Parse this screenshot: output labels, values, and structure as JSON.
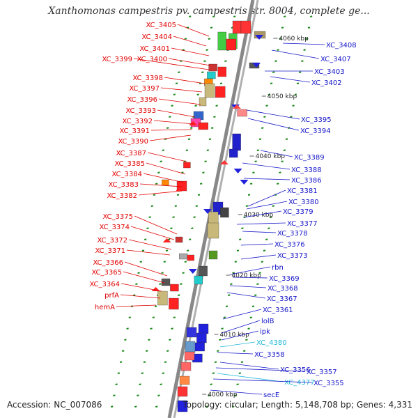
{
  "map": {
    "title": "Xanthomonas campestris pv. campestris str. 8004, complete ge...",
    "accession": "Accession: NC_007086",
    "topology": "Topology: circular; Length: 5,148,708 bp; Genes: 4,331",
    "colors": {
      "left_labels": "#e00000",
      "right_labels": "#1515c8",
      "cyan_labels": "#1fb8d8",
      "backbone": "#888888"
    },
    "kbp_labels": [
      "4060 kbp",
      "4050 kbp",
      "4040 kbp",
      "4030 kbp",
      "4020 kbp",
      "4010 kbp",
      "4000 kbp"
    ],
    "left_genes": [
      "XC_3405",
      "XC_3404",
      "XC_3401",
      "XC_3399",
      "XC_3400",
      "XC_3398",
      "XC_3397",
      "XC_3396",
      "XC_3393",
      "XC_3392",
      "XC_3391",
      "XC_3390",
      "XC_3387",
      "XC_3385",
      "XC_3384",
      "XC_3383",
      "XC_3382",
      "XC_3375",
      "XC_3374",
      "XC_3372",
      "XC_3371",
      "XC_3366",
      "XC_3365",
      "XC_3364",
      "prfA",
      "hemA"
    ],
    "right_genes": [
      "XC_3408",
      "XC_3407",
      "XC_3403",
      "XC_3402",
      "XC_3395",
      "XC_3394",
      "XC_3389",
      "XC_3388",
      "XC_3386",
      "XC_3381",
      "XC_3380",
      "XC_3379",
      "XC_3377",
      "XC_3378",
      "XC_3376",
      "XC_3373",
      "rbn",
      "XC_3369",
      "XC_3368",
      "XC_3367",
      "XC_3361",
      "lolB",
      "ipk",
      "XC_4380",
      "XC_3358",
      "XC_3356",
      "XC_3357",
      "XC_4377",
      "XC_3355",
      "secE"
    ]
  }
}
